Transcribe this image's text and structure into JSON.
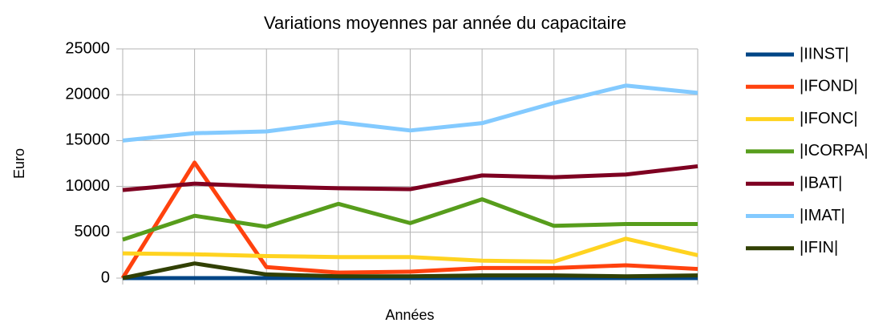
{
  "chart_data": {
    "type": "line",
    "title": "Variations moyennes par année du capacitaire",
    "x_label": "Années",
    "y_label": "Euro",
    "categories": [
      null,
      null,
      null,
      null,
      null,
      null,
      null,
      null,
      null
    ],
    "series": [
      {
        "name": "|IINST|",
        "color": "#004586",
        "values": [
          0,
          0,
          0,
          0,
          0,
          0,
          0,
          0,
          0
        ]
      },
      {
        "name": "|IFOND|",
        "color": "#ff420e",
        "values": [
          0,
          12600,
          1200,
          600,
          700,
          1100,
          1100,
          1400,
          1000
        ]
      },
      {
        "name": "|IFONC|",
        "color": "#ffd320",
        "values": [
          2700,
          2600,
          2400,
          2300,
          2300,
          1900,
          1800,
          4300,
          2500
        ]
      },
      {
        "name": "|ICORPA|",
        "color": "#579d1c",
        "values": [
          4200,
          6800,
          5600,
          8100,
          6000,
          8600,
          5700,
          5900,
          5900
        ]
      },
      {
        "name": "|IBAT|",
        "color": "#7e0021",
        "values": [
          9600,
          10300,
          10000,
          9800,
          9700,
          11200,
          11000,
          11300,
          12200
        ]
      },
      {
        "name": "|IMAT|",
        "color": "#83caff",
        "values": [
          15000,
          15800,
          16000,
          17000,
          16100,
          16900,
          19100,
          21000,
          20200
        ]
      },
      {
        "name": "|IFIN|",
        "color": "#314004",
        "values": [
          0,
          1600,
          400,
          200,
          200,
          300,
          300,
          200,
          300
        ]
      }
    ],
    "ylim": [
      0,
      25000
    ],
    "yticks": [
      0,
      5000,
      10000,
      15000,
      20000,
      25000
    ],
    "grid": true,
    "legend": "right"
  }
}
